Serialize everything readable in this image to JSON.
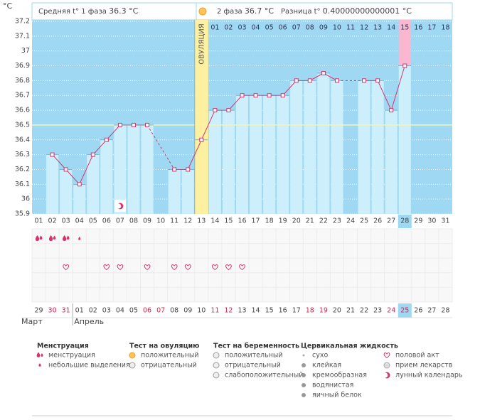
{
  "header": {
    "phase1_label": "Средняя t° 1 фаза",
    "phase1_value": "36.3 °C",
    "phase2_label": "2 фаза",
    "phase2_value": "36.7 °C",
    "diff_label": "Разница t°",
    "diff_value": "0.40000000000001 °C"
  },
  "chart_data": {
    "type": "line",
    "y_unit": "°C",
    "categories": [
      "01",
      "02",
      "03",
      "04",
      "05",
      "06",
      "07",
      "08",
      "09",
      "10",
      "11",
      "12",
      "13",
      "14",
      "15",
      "16",
      "17",
      "18",
      "19",
      "20",
      "21",
      "22",
      "23",
      "24",
      "25",
      "26",
      "27",
      "28",
      "29",
      "30",
      "31"
    ],
    "values": [
      null,
      36.3,
      36.2,
      36.1,
      36.3,
      36.4,
      36.5,
      36.5,
      36.5,
      null,
      36.2,
      36.2,
      36.4,
      36.6,
      36.6,
      36.7,
      36.7,
      36.7,
      36.7,
      36.8,
      36.8,
      36.85,
      36.8,
      null,
      36.8,
      36.8,
      36.6,
      36.9,
      null,
      null,
      null
    ],
    "ylim": [
      35.9,
      37.2
    ],
    "yticks": [
      35.9,
      36,
      36.1,
      36.2,
      36.3,
      36.4,
      36.5,
      36.6,
      36.7,
      36.8,
      36.9,
      37,
      37.1,
      37.2
    ],
    "grid": true,
    "coverline": 36.5,
    "color": "#d6336c",
    "ovulation_label": "ОВУЛЯЦИЯ",
    "ovulation_day": "13",
    "highlight_day": "28",
    "phase2_days": [
      "01",
      "02",
      "03",
      "04",
      "05",
      "06",
      "07",
      "08",
      "09",
      "10",
      "11",
      "12",
      "13",
      "14",
      "15",
      "16",
      "17",
      "18"
    ],
    "menstruation_heavy": [
      "01",
      "02",
      "03"
    ],
    "menstruation_light": [
      "04"
    ],
    "intercourse_days": [
      "03",
      "06",
      "07",
      "09",
      "11",
      "12",
      "14",
      "15",
      "16"
    ],
    "lunar_days": [
      "07"
    ]
  },
  "calendar": {
    "dates": [
      "29",
      "30",
      "31",
      "01",
      "02",
      "03",
      "04",
      "05",
      "06",
      "07",
      "08",
      "09",
      "10",
      "11",
      "12",
      "13",
      "14",
      "15",
      "16",
      "17",
      "18",
      "19",
      "20",
      "21",
      "22",
      "23",
      "24",
      "25",
      "26",
      "27",
      "28"
    ],
    "weekend": [
      false,
      true,
      true,
      false,
      false,
      false,
      false,
      false,
      true,
      true,
      false,
      false,
      false,
      true,
      true,
      false,
      false,
      false,
      false,
      false,
      true,
      true,
      false,
      false,
      false,
      false,
      true,
      true,
      false,
      false,
      false
    ],
    "months": [
      "Март",
      "Апрель"
    ]
  },
  "legend": [
    {
      "title": "Менструация",
      "items": [
        "менструация",
        "небольшие выделения"
      ]
    },
    {
      "title": "Тест на овуляцию",
      "items": [
        "положительный",
        "отрицательный"
      ]
    },
    {
      "title": "Тест на беременность",
      "items": [
        "положительный",
        "отрицательный",
        "слабоположительный"
      ]
    },
    {
      "title": "Цервикальная жидкость",
      "items": [
        "сухо",
        "клейкая",
        "кремообразная",
        "водянистая",
        "яичный белок"
      ]
    },
    {
      "items": [
        "половой акт",
        "прием лекарств",
        "лунный календарь"
      ]
    }
  ]
}
